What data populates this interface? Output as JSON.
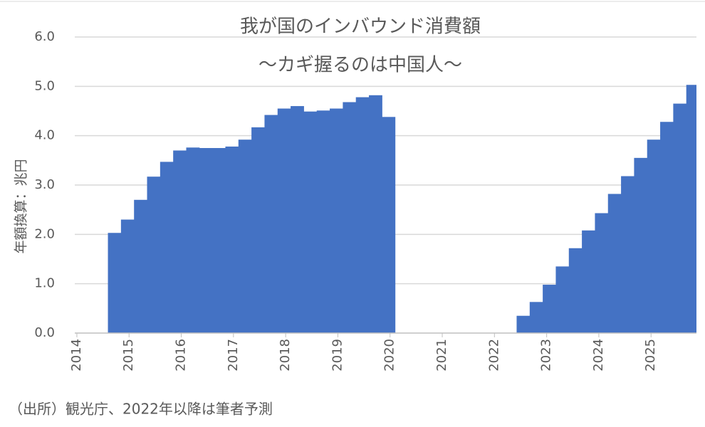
{
  "chart_data": {
    "type": "bar",
    "title": "我が国のインバウンド消費額",
    "subtitle": "〜カギ握るのは中国人〜",
    "y_label": "年額換算：兆円",
    "source_note": "（出所）観光庁、2022年以降は筆者予測",
    "color": "#4472c4",
    "grid": true,
    "x": [
      2014.72,
      2014.97,
      2015.22,
      2015.47,
      2015.72,
      2015.97,
      2016.22,
      2016.47,
      2016.72,
      2016.97,
      2017.22,
      2017.47,
      2017.72,
      2017.97,
      2018.22,
      2018.47,
      2018.72,
      2018.97,
      2019.22,
      2019.47,
      2019.72,
      2019.97,
      2022.55,
      2022.8,
      2023.05,
      2023.3,
      2023.55,
      2023.8,
      2024.05,
      2024.3,
      2024.55,
      2024.8,
      2025.05,
      2025.3,
      2025.55,
      2025.8
    ],
    "values": [
      2.03,
      2.3,
      2.7,
      3.17,
      3.47,
      3.7,
      3.76,
      3.75,
      3.75,
      3.78,
      3.92,
      4.17,
      4.42,
      4.55,
      4.6,
      4.49,
      4.51,
      4.55,
      4.68,
      4.78,
      4.82,
      4.38,
      0.35,
      0.63,
      0.98,
      1.35,
      1.72,
      2.08,
      2.43,
      2.82,
      3.18,
      3.55,
      3.92,
      4.28,
      4.65,
      5.03
    ],
    "xlim": [
      2013.96,
      2025.87
    ],
    "xticks": [
      2014,
      2015,
      2016,
      2017,
      2018,
      2019,
      2020,
      2021,
      2022,
      2023,
      2024,
      2025
    ],
    "ylim": [
      0,
      6
    ],
    "yticks": [
      {
        "value": 0,
        "label": "0.0"
      },
      {
        "value": 1,
        "label": "1.0"
      },
      {
        "value": 2,
        "label": "2.0"
      },
      {
        "value": 3,
        "label": "3.0"
      },
      {
        "value": 4,
        "label": "4.0"
      },
      {
        "value": 5,
        "label": "5.0"
      },
      {
        "value": 6,
        "label": "6.0"
      }
    ]
  }
}
